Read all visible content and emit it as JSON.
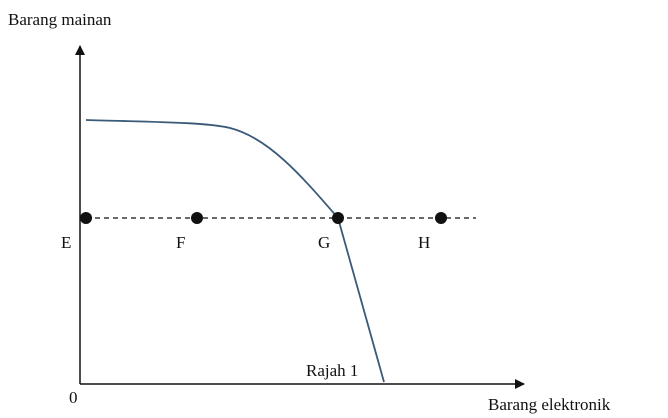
{
  "axes": {
    "y_label": "Barang mainan",
    "x_label": "Barang elektronik",
    "origin": "0"
  },
  "points": [
    {
      "label": "E"
    },
    {
      "label": "F"
    },
    {
      "label": "G"
    },
    {
      "label": "H"
    }
  ],
  "caption": "Rajah 1"
}
